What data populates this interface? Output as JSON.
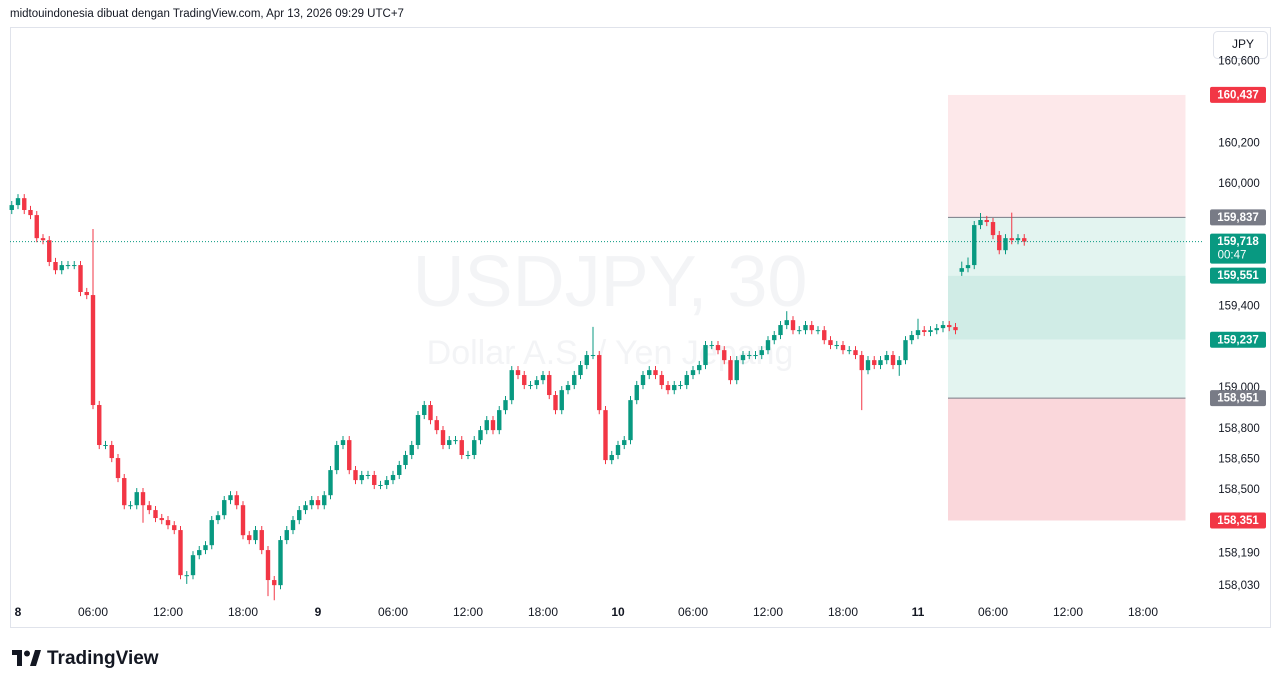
{
  "header": {
    "text": "midtouindonesia dibuat dengan TradingView.com, Apr 13, 2026 09:29 UTC+7"
  },
  "currency_button": "JPY",
  "logo_text": "TradingView",
  "chart_data": {
    "type": "candlestick",
    "watermark_symbol": "USDJPY, 30",
    "watermark_name": "Dollar A.S. / Yen Jepang",
    "up_color": "#089981",
    "down_color": "#f23645",
    "x": [
      -0.5,
      0,
      0.5,
      1,
      1.5,
      2,
      2.5,
      3,
      3.5,
      4,
      4.5,
      5,
      5.5,
      6,
      6.5,
      7,
      7.5,
      8,
      8.5,
      9,
      9.5,
      10,
      10.5,
      11,
      11.5,
      12,
      12.5,
      13,
      13.5,
      14,
      14.5,
      15,
      15.5,
      16,
      16.5,
      17,
      17.5,
      18,
      18.5,
      19,
      19.5,
      20,
      20.5,
      21,
      21.5,
      22,
      22.5,
      23,
      23.5,
      24,
      24.5,
      25,
      25.5,
      26,
      26.5,
      27,
      27.5,
      28,
      28.5,
      29,
      29.5,
      30,
      30.5,
      31,
      31.5,
      32,
      32.5,
      33,
      33.5,
      34,
      34.5,
      35,
      35.5,
      36,
      36.5,
      37,
      37.5,
      38,
      38.5,
      39,
      39.5,
      40,
      40.5,
      41,
      41.5,
      42,
      42.5,
      43,
      43.5,
      44,
      44.5,
      45,
      45.5,
      46,
      46.5,
      47,
      47.5,
      48,
      48.5,
      49,
      49.5,
      50,
      50.5,
      51,
      51.5,
      52,
      52.5,
      53,
      53.5,
      54,
      54.5,
      55,
      55.5,
      56,
      56.5,
      57,
      57.5,
      58,
      58.5,
      59,
      59.5,
      60,
      60.5,
      61,
      61.5,
      62,
      62.5,
      63,
      63.5,
      64,
      64.5,
      65,
      65.5,
      66,
      66.5,
      67,
      67.5,
      68,
      68.5,
      69,
      69.5,
      70,
      70.5,
      71,
      71.5,
      72,
      72.5,
      73,
      73.5,
      74,
      74.5,
      75,
      75.5,
      76,
      76.5,
      77,
      77.5,
      78,
      78.5,
      79,
      79.5,
      80,
      80.5
    ],
    "open": [
      159.873,
      159.897,
      159.931,
      159.873,
      159.848,
      159.735,
      159.725,
      159.618,
      159.578,
      159.603,
      159.603,
      159.603,
      159.471,
      159.456,
      158.917,
      158.721,
      158.721,
      158.657,
      158.559,
      158.426,
      158.426,
      158.49,
      158.426,
      158.402,
      158.363,
      158.353,
      158.328,
      158.304,
      158.083,
      158.083,
      158.181,
      158.206,
      158.23,
      158.353,
      158.377,
      158.451,
      158.475,
      158.426,
      158.279,
      158.255,
      158.304,
      158.206,
      158.059,
      158.034,
      158.255,
      158.304,
      158.353,
      158.402,
      158.426,
      158.451,
      158.426,
      158.475,
      158.598,
      158.721,
      158.745,
      158.598,
      158.549,
      158.574,
      158.574,
      158.525,
      158.525,
      158.549,
      158.574,
      158.623,
      158.672,
      158.721,
      158.868,
      158.917,
      158.843,
      158.794,
      158.721,
      158.745,
      158.745,
      158.672,
      158.672,
      158.745,
      158.794,
      158.843,
      158.794,
      158.892,
      158.941,
      159.088,
      159.064,
      159.015,
      159.015,
      159.039,
      159.064,
      158.966,
      158.892,
      158.99,
      159.015,
      159.064,
      159.113,
      159.162,
      159.162,
      158.892,
      158.647,
      158.672,
      158.721,
      158.745,
      158.941,
      159.015,
      159.064,
      159.088,
      159.064,
      159.015,
      158.99,
      159.015,
      159.015,
      159.064,
      159.088,
      159.113,
      159.211,
      159.211,
      159.186,
      159.137,
      159.039,
      159.137,
      159.162,
      159.162,
      159.162,
      159.186,
      159.235,
      159.26,
      159.309,
      159.333,
      159.284,
      159.284,
      159.309,
      159.284,
      159.284,
      159.235,
      159.211,
      159.211,
      159.186,
      159.186,
      159.162,
      159.088,
      159.137,
      159.113,
      159.137,
      159.162,
      159.113,
      159.137,
      159.235,
      159.26,
      159.284,
      159.275,
      159.284,
      159.294,
      159.309,
      159.299,
      159.57,
      159.588,
      159.603,
      159.799,
      159.824,
      159.814,
      159.75,
      159.676,
      159.735,
      159.725,
      159.735
    ],
    "high": [
      159.917,
      159.951,
      159.951,
      159.893,
      159.868,
      159.755,
      159.745,
      159.638,
      159.623,
      159.623,
      159.623,
      159.623,
      159.491,
      159.78,
      158.937,
      158.741,
      158.741,
      158.677,
      158.579,
      158.446,
      158.51,
      158.51,
      158.446,
      158.422,
      158.383,
      158.373,
      158.348,
      158.324,
      158.103,
      158.201,
      158.226,
      158.25,
      158.373,
      158.397,
      158.471,
      158.495,
      158.495,
      158.446,
      158.299,
      158.324,
      158.324,
      158.226,
      158.079,
      158.275,
      158.324,
      158.373,
      158.422,
      158.446,
      158.471,
      158.471,
      158.495,
      158.618,
      158.741,
      158.765,
      158.765,
      158.618,
      158.594,
      158.594,
      158.594,
      158.545,
      158.569,
      158.594,
      158.643,
      158.692,
      158.741,
      158.888,
      158.937,
      158.937,
      158.863,
      158.814,
      158.765,
      158.765,
      158.765,
      158.692,
      158.765,
      158.814,
      158.863,
      158.863,
      158.912,
      158.961,
      159.108,
      159.108,
      159.084,
      159.035,
      159.059,
      159.084,
      159.084,
      158.986,
      159.01,
      159.035,
      159.084,
      159.133,
      159.182,
      159.3,
      159.182,
      158.912,
      158.692,
      158.741,
      158.765,
      158.961,
      159.035,
      159.084,
      159.108,
      159.108,
      159.084,
      159.035,
      159.035,
      159.035,
      159.084,
      159.108,
      159.133,
      159.231,
      159.231,
      159.231,
      159.206,
      159.157,
      159.157,
      159.182,
      159.182,
      159.182,
      159.206,
      159.255,
      159.28,
      159.329,
      159.377,
      159.353,
      159.304,
      159.329,
      159.329,
      159.304,
      159.304,
      159.255,
      159.231,
      159.231,
      159.206,
      159.206,
      159.182,
      159.157,
      159.157,
      159.157,
      159.182,
      159.182,
      159.157,
      159.255,
      159.28,
      159.34,
      159.304,
      159.304,
      159.314,
      159.329,
      159.329,
      159.319,
      159.62,
      159.64,
      159.819,
      159.858,
      159.844,
      159.834,
      159.77,
      159.755,
      159.86,
      159.755,
      159.755
    ],
    "low": [
      159.853,
      159.877,
      159.853,
      159.828,
      159.715,
      159.705,
      159.598,
      159.558,
      159.558,
      159.583,
      159.583,
      159.451,
      159.436,
      158.897,
      158.701,
      158.701,
      158.637,
      158.539,
      158.406,
      158.406,
      158.406,
      158.34,
      158.382,
      158.343,
      158.333,
      158.308,
      158.284,
      158.063,
      158.04,
      158.063,
      158.161,
      158.186,
      158.21,
      158.333,
      158.357,
      158.431,
      158.406,
      158.259,
      158.235,
      158.235,
      158.186,
      157.98,
      157.96,
      158.014,
      158.235,
      158.284,
      158.333,
      158.382,
      158.406,
      158.406,
      158.406,
      158.455,
      158.578,
      158.701,
      158.578,
      158.529,
      158.529,
      158.554,
      158.505,
      158.505,
      158.505,
      158.529,
      158.554,
      158.603,
      158.652,
      158.701,
      158.848,
      158.823,
      158.774,
      158.701,
      158.701,
      158.725,
      158.652,
      158.652,
      158.652,
      158.725,
      158.774,
      158.774,
      158.774,
      158.872,
      158.921,
      159.044,
      158.995,
      158.995,
      158.995,
      159.019,
      158.946,
      158.872,
      158.872,
      158.97,
      158.995,
      159.044,
      159.093,
      159.142,
      158.872,
      158.627,
      158.627,
      158.652,
      158.701,
      158.725,
      158.921,
      158.995,
      159.044,
      159.044,
      158.995,
      158.97,
      158.97,
      158.995,
      158.995,
      159.044,
      159.068,
      159.093,
      159.191,
      159.166,
      159.117,
      159.019,
      159.019,
      159.117,
      159.142,
      159.142,
      159.142,
      159.166,
      159.215,
      159.24,
      159.289,
      159.264,
      159.264,
      159.264,
      159.264,
      159.264,
      159.215,
      159.191,
      159.191,
      159.166,
      159.166,
      159.142,
      158.892,
      159.068,
      159.093,
      159.093,
      159.117,
      159.093,
      159.06,
      159.117,
      159.215,
      159.24,
      159.255,
      159.255,
      159.264,
      159.274,
      159.279,
      159.264,
      159.55,
      159.568,
      159.583,
      159.779,
      159.794,
      159.73,
      159.656,
      159.656,
      159.705,
      159.705,
      159.698
    ],
    "close": [
      159.897,
      159.931,
      159.873,
      159.848,
      159.735,
      159.725,
      159.618,
      159.578,
      159.603,
      159.603,
      159.603,
      159.471,
      159.456,
      158.917,
      158.721,
      158.721,
      158.657,
      158.559,
      158.426,
      158.426,
      158.49,
      158.426,
      158.402,
      158.363,
      158.353,
      158.328,
      158.304,
      158.083,
      158.083,
      158.181,
      158.206,
      158.23,
      158.353,
      158.377,
      158.451,
      158.475,
      158.426,
      158.279,
      158.255,
      158.304,
      158.206,
      158.059,
      158.034,
      158.255,
      158.304,
      158.353,
      158.402,
      158.426,
      158.451,
      158.426,
      158.475,
      158.598,
      158.721,
      158.745,
      158.598,
      158.549,
      158.574,
      158.574,
      158.525,
      158.525,
      158.549,
      158.574,
      158.623,
      158.672,
      158.721,
      158.868,
      158.917,
      158.843,
      158.794,
      158.721,
      158.745,
      158.745,
      158.672,
      158.672,
      158.745,
      158.794,
      158.843,
      158.794,
      158.892,
      158.941,
      159.088,
      159.064,
      159.015,
      159.015,
      159.039,
      159.064,
      158.966,
      158.892,
      158.99,
      159.015,
      159.064,
      159.113,
      159.162,
      159.162,
      158.892,
      158.647,
      158.672,
      158.721,
      158.745,
      158.941,
      159.015,
      159.064,
      159.088,
      159.064,
      159.015,
      158.99,
      159.015,
      159.015,
      159.064,
      159.088,
      159.113,
      159.211,
      159.211,
      159.186,
      159.137,
      159.039,
      159.137,
      159.162,
      159.162,
      159.162,
      159.186,
      159.235,
      159.26,
      159.309,
      159.333,
      159.284,
      159.284,
      159.309,
      159.284,
      159.284,
      159.235,
      159.211,
      159.211,
      159.186,
      159.186,
      159.162,
      159.088,
      159.137,
      159.113,
      159.137,
      159.162,
      159.113,
      159.137,
      159.235,
      159.26,
      159.284,
      159.275,
      159.284,
      159.294,
      159.309,
      159.299,
      159.284,
      159.588,
      159.603,
      159.799,
      159.824,
      159.814,
      159.75,
      159.676,
      159.735,
      159.725,
      159.735,
      159.718
    ],
    "xlim": [
      -0.64,
      94.8
    ],
    "xticks": [
      {
        "value": 0,
        "label": "8"
      },
      {
        "value": 6,
        "label": "06:00"
      },
      {
        "value": 12,
        "label": "12:00"
      },
      {
        "value": 18,
        "label": "18:00"
      },
      {
        "value": 24,
        "label": "9"
      },
      {
        "value": 30,
        "label": "06:00"
      },
      {
        "value": 36,
        "label": "12:00"
      },
      {
        "value": 42,
        "label": "18:00"
      },
      {
        "value": 48,
        "label": "10"
      },
      {
        "value": 54,
        "label": "06:00"
      },
      {
        "value": 60,
        "label": "12:00"
      },
      {
        "value": 66,
        "label": "18:00"
      },
      {
        "value": 72,
        "label": "11"
      },
      {
        "value": 78,
        "label": "06:00"
      },
      {
        "value": 84,
        "label": "12:00"
      },
      {
        "value": 90,
        "label": "18:00"
      }
    ],
    "ylim": [
      157.824,
      160.77
    ],
    "yticks": [
      {
        "value": 160.6,
        "label": "160,600"
      },
      {
        "value": 160.2,
        "label": "160,200"
      },
      {
        "value": 160,
        "label": "160,000"
      },
      {
        "value": 159.4,
        "label": "159,400"
      },
      {
        "value": 159,
        "label": "159,000"
      },
      {
        "value": 158.8,
        "label": "158,800"
      },
      {
        "value": 158.65,
        "label": "158,650"
      },
      {
        "value": 158.5,
        "label": "158,500"
      },
      {
        "value": 158.19,
        "label": "158,190"
      },
      {
        "value": 158.03,
        "label": "158,030"
      }
    ],
    "grid": false,
    "current_price": {
      "value": 159.718,
      "label": "159,718",
      "countdown": "00:47",
      "color": "#089981"
    },
    "position_tool": {
      "xlim": [
        74.4,
        93.4
      ],
      "levels": [
        {
          "value": 160.437,
          "label": "160,437",
          "color": "#f23645",
          "line": false
        },
        {
          "value": 159.837,
          "label": "159,837",
          "color": "#787b86",
          "line": true
        },
        {
          "value": 159.551,
          "label": "159,551",
          "color": "#089981",
          "line": false
        },
        {
          "value": 159.237,
          "label": "159,237",
          "color": "#089981",
          "line": false
        },
        {
          "value": 158.951,
          "label": "158,951",
          "color": "#787b86",
          "line": true
        },
        {
          "value": 158.351,
          "label": "158,351",
          "color": "#f23645",
          "line": false
        }
      ],
      "zone_colors": [
        "#fde8ea",
        "#e3f4f0",
        "#d0ece6",
        "#e3f4f0",
        "#fad7db"
      ]
    }
  }
}
